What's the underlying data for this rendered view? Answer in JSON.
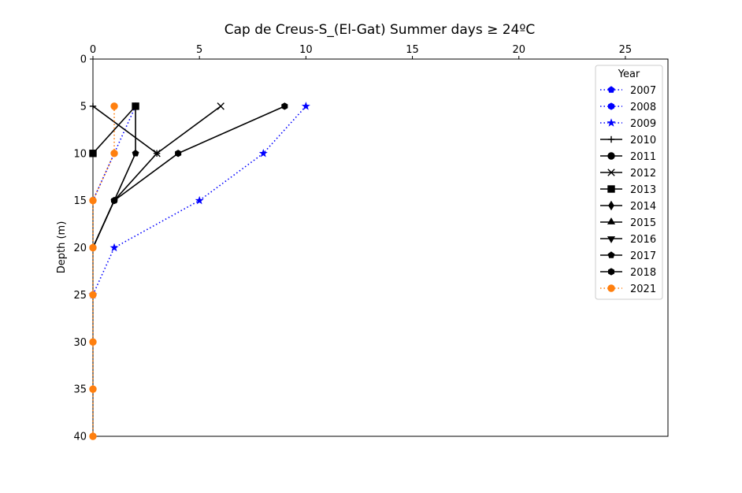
{
  "chart_data": {
    "type": "line",
    "title": "Cap de Creus-S_(El-Gat) Summer days ≥ 24ºC",
    "xlabel": "",
    "ylabel": "Depth (m)",
    "x_axis_position": "top",
    "y_inverted": true,
    "xlim": [
      0,
      27
    ],
    "ylim": [
      0,
      40
    ],
    "x_ticks": [
      0,
      5,
      10,
      15,
      20,
      25
    ],
    "y_ticks": [
      0,
      5,
      10,
      15,
      20,
      25,
      30,
      35,
      40
    ],
    "grid": false,
    "legend_title": "Year",
    "legend_position": "top-right",
    "depths": [
      5,
      10,
      15,
      20,
      25,
      30,
      35,
      40
    ],
    "series": [
      {
        "name": "2007",
        "color": "#0000ff",
        "linestyle": "dotted",
        "marker": "pentagon",
        "values": [
          2,
          1,
          0,
          null,
          null,
          null,
          null,
          null
        ]
      },
      {
        "name": "2008",
        "color": "#0000ff",
        "linestyle": "dotted",
        "marker": "hexagon",
        "values": [
          null,
          null,
          null,
          null,
          null,
          null,
          null,
          null
        ]
      },
      {
        "name": "2009",
        "color": "#0000ff",
        "linestyle": "dotted",
        "marker": "star",
        "values": [
          10,
          8,
          5,
          1,
          0,
          null,
          null,
          null
        ]
      },
      {
        "name": "2010",
        "color": "#000000",
        "linestyle": "solid",
        "marker": "plus",
        "values": [
          0,
          3,
          1,
          0,
          null,
          null,
          null,
          null
        ]
      },
      {
        "name": "2011",
        "color": "#000000",
        "linestyle": "solid",
        "marker": "circle",
        "values": [
          null,
          null,
          null,
          null,
          null,
          null,
          null,
          null
        ]
      },
      {
        "name": "2012",
        "color": "#000000",
        "linestyle": "solid",
        "marker": "x",
        "values": [
          6,
          3,
          null,
          null,
          null,
          null,
          null,
          null
        ]
      },
      {
        "name": "2013",
        "color": "#000000",
        "linestyle": "solid",
        "marker": "square",
        "values": [
          2,
          0,
          null,
          null,
          null,
          null,
          null,
          null
        ]
      },
      {
        "name": "2014",
        "color": "#000000",
        "linestyle": "solid",
        "marker": "diamond",
        "values": [
          null,
          null,
          null,
          null,
          null,
          null,
          null,
          null
        ]
      },
      {
        "name": "2015",
        "color": "#000000",
        "linestyle": "solid",
        "marker": "triangle-up",
        "values": [
          null,
          null,
          null,
          null,
          null,
          null,
          null,
          null
        ]
      },
      {
        "name": "2016",
        "color": "#000000",
        "linestyle": "solid",
        "marker": "triangle-down",
        "values": [
          null,
          null,
          null,
          null,
          null,
          null,
          null,
          null
        ]
      },
      {
        "name": "2017",
        "color": "#000000",
        "linestyle": "solid",
        "marker": "pentagon",
        "values": [
          2,
          2,
          1,
          0,
          null,
          null,
          null,
          null
        ]
      },
      {
        "name": "2018",
        "color": "#000000",
        "linestyle": "solid",
        "marker": "hexagon",
        "values": [
          9,
          4,
          1,
          0,
          null,
          null,
          null,
          null
        ]
      },
      {
        "name": "2021",
        "color": "#ff7f0e",
        "linestyle": "dotted",
        "marker": "circle",
        "values": [
          1,
          1,
          0,
          0,
          0,
          0,
          0,
          0
        ]
      }
    ]
  }
}
